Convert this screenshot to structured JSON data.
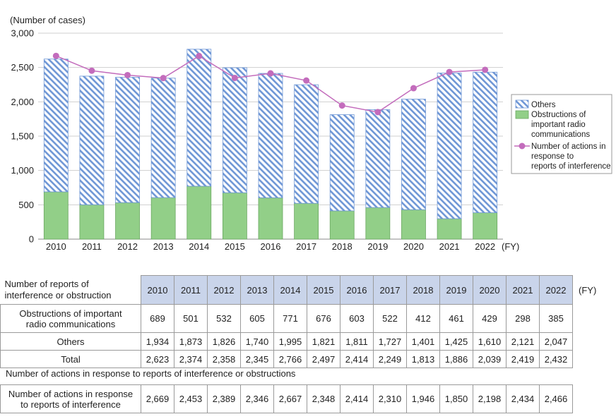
{
  "chart_data": {
    "type": "bar",
    "stacked": true,
    "y_unit_label": "(Number of cases)",
    "x_unit_label": "(FY)",
    "categories": [
      "2010",
      "2011",
      "2012",
      "2013",
      "2014",
      "2015",
      "2016",
      "2017",
      "2018",
      "2019",
      "2020",
      "2021",
      "2022"
    ],
    "ylim": [
      0,
      3000
    ],
    "yticks": [
      0,
      500,
      1000,
      1500,
      2000,
      2500,
      3000
    ],
    "ytick_labels": [
      "0",
      "500",
      "1,000",
      "1,500",
      "2,000",
      "2,500",
      "3,000"
    ],
    "grid": true,
    "legend_position": "right",
    "series": [
      {
        "name": "Obstructions of important radio communications",
        "kind": "bar",
        "color": "#92cf88",
        "values": [
          689,
          501,
          532,
          605,
          771,
          676,
          603,
          522,
          412,
          461,
          429,
          298,
          385
        ]
      },
      {
        "name": "Others",
        "kind": "bar",
        "color": "#6f97d6",
        "pattern": "diagonal-hatch",
        "values": [
          1934,
          1873,
          1826,
          1740,
          1995,
          1821,
          1811,
          1727,
          1401,
          1425,
          1610,
          2121,
          2047
        ]
      },
      {
        "name": "Number of actions in response to reports of interference",
        "kind": "line",
        "color": "#c36cbc",
        "values": [
          2669,
          2453,
          2389,
          2346,
          2667,
          2348,
          2414,
          2310,
          1946,
          1850,
          2198,
          2434,
          2466
        ]
      }
    ],
    "legend": [
      {
        "text": "Others",
        "lines": [
          "Others"
        ]
      },
      {
        "text": "Obstructions of important radio communications",
        "lines": [
          "Obstructions of",
          "important radio",
          "communications"
        ]
      },
      {
        "text": "Number of actions in response to reports of interference",
        "lines": [
          "Number of actions in",
          "response to",
          "reports of interference"
        ]
      }
    ]
  },
  "table": {
    "header_label": "Number of reports of interference or obstruction",
    "header_label_lines": [
      "Number of reports of",
      "interference or obstruction"
    ],
    "years": [
      "2010",
      "2011",
      "2012",
      "2013",
      "2014",
      "2015",
      "2016",
      "2017",
      "2018",
      "2019",
      "2020",
      "2021",
      "2022"
    ],
    "fy_label": "(FY)",
    "rows": [
      {
        "label": "Obstructions of important radio communications",
        "label_lines": [
          "Obstructions of important",
          "radio communications"
        ],
        "cells": [
          "689",
          "501",
          "532",
          "605",
          "771",
          "676",
          "603",
          "522",
          "412",
          "461",
          "429",
          "298",
          "385"
        ]
      },
      {
        "label": "Others",
        "label_lines": [
          "Others"
        ],
        "cells": [
          "1,934",
          "1,873",
          "1,826",
          "1,740",
          "1,995",
          "1,821",
          "1,811",
          "1,727",
          "1,401",
          "1,425",
          "1,610",
          "2,121",
          "2,047"
        ]
      },
      {
        "label": "Total",
        "label_lines": [
          "Total"
        ],
        "cells": [
          "2,623",
          "2,374",
          "2,358",
          "2,345",
          "2,766",
          "2,497",
          "2,414",
          "2,249",
          "1,813",
          "1,886",
          "2,039",
          "2,419",
          "2,432"
        ]
      }
    ]
  },
  "actions_table": {
    "title": "Number of actions in response to reports of interference or obstructions",
    "row_label": "Number of actions in response to reports of interference",
    "row_label_lines": [
      "Number of actions in response",
      "to reports of interference"
    ],
    "cells": [
      "2,669",
      "2,453",
      "2,389",
      "2,346",
      "2,667",
      "2,348",
      "2,414",
      "2,310",
      "1,946",
      "1,850",
      "2,198",
      "2,434",
      "2,466"
    ]
  }
}
